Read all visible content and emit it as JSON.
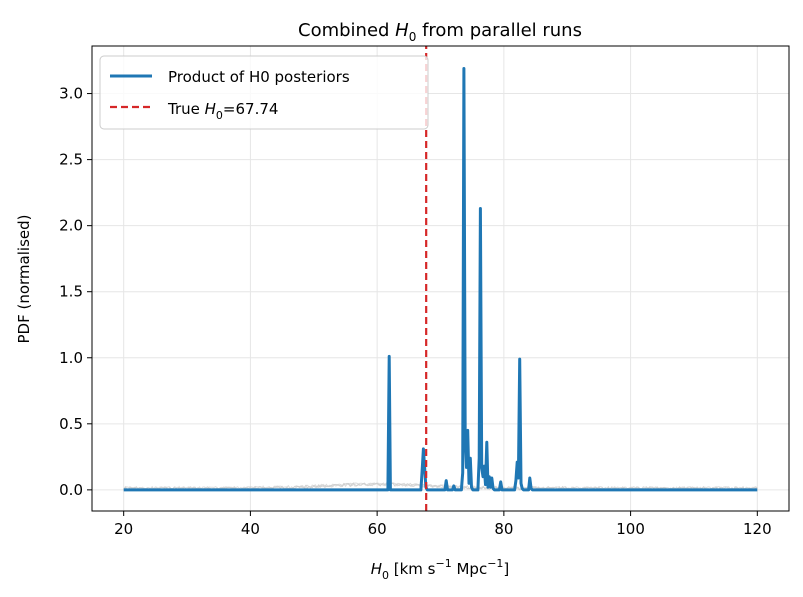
{
  "chart_data": {
    "type": "line",
    "title_prefix": "Combined ",
    "title_sym": "H",
    "title_sub": "0",
    "title_suffix": " from parallel runs",
    "xlabel_sym": "H",
    "xlabel_sub": "0",
    "xlabel_unit_a": " [km s",
    "xlabel_sup1": "−1",
    "xlabel_unit_b": " Mpc",
    "xlabel_sup2": "−1",
    "xlabel_close": "]",
    "ylabel": "PDF (normalised)",
    "xlim": [
      15,
      125
    ],
    "ylim": [
      -0.16,
      3.36
    ],
    "xticks": [
      20,
      40,
      60,
      80,
      100,
      120
    ],
    "xtick_labels": [
      "20",
      "40",
      "60",
      "80",
      "100",
      "120"
    ],
    "yticks": [
      0.0,
      0.5,
      1.0,
      1.5,
      2.0,
      2.5,
      3.0
    ],
    "ytick_labels": [
      "0.0",
      "0.5",
      "1.0",
      "1.5",
      "2.0",
      "2.5",
      "3.0"
    ],
    "grid": true,
    "legend_position": "top-left",
    "true_value": 67.74,
    "series": [
      {
        "name": "Product of H0 posteriors",
        "color": "#1f77b4",
        "x": [
          20,
          61.7,
          61.9,
          62.1,
          66.9,
          67.1,
          67.3,
          67.5,
          67.7,
          67.9,
          70.7,
          70.9,
          71.1,
          71.9,
          72.1,
          72.3,
          73.3,
          73.5,
          73.7,
          73.9,
          74.1,
          74.3,
          74.5,
          74.7,
          74.9,
          75.1,
          75.9,
          76.1,
          76.3,
          76.5,
          76.7,
          76.9,
          77.1,
          77.3,
          77.5,
          77.7,
          77.9,
          78.1,
          78.3,
          78.5,
          79.3,
          79.5,
          79.7,
          81.7,
          81.9,
          82.1,
          82.3,
          82.5,
          82.7,
          82.9,
          83.1,
          83.9,
          84.1,
          84.3,
          84.5,
          120
        ],
        "values": [
          0,
          0,
          1.01,
          0,
          0,
          0.14,
          0.31,
          0.16,
          0.02,
          0,
          0,
          0.07,
          0,
          0,
          0.03,
          0,
          0,
          0.13,
          3.19,
          0.38,
          0.17,
          0.45,
          0.05,
          0.24,
          0.02,
          0,
          0,
          0.24,
          2.13,
          0.17,
          0.1,
          0.18,
          0.04,
          0.36,
          0.02,
          0.1,
          0.02,
          0.09,
          0.01,
          0,
          0,
          0.06,
          0,
          0,
          0.07,
          0.21,
          0.09,
          0.99,
          0.05,
          0.01,
          0,
          0,
          0.09,
          0.01,
          0,
          0
        ]
      },
      {
        "name": "True H0=67.74",
        "legend_prefix": "True ",
        "legend_sym": "H",
        "legend_sub": "0",
        "legend_suffix": "=67.74",
        "color": "#d62728",
        "style": "dashed",
        "x": [
          67.74,
          67.74
        ],
        "values": [
          -0.16,
          3.36
        ]
      }
    ],
    "background_runs": {
      "color": "#cccccc",
      "count": 3,
      "x_range": [
        20,
        120
      ],
      "approx_level": 0.02
    }
  }
}
